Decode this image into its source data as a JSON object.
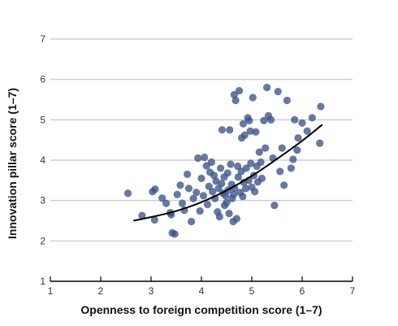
{
  "chart_data": {
    "type": "scatter",
    "title": "",
    "xlabel": "Openness to foreign competition score (1–7)",
    "ylabel": "Innovation pillar score (1–7)",
    "xlim": [
      1,
      7
    ],
    "ylim": [
      1,
      7
    ],
    "x_ticks": [
      1,
      2,
      3,
      4,
      5,
      6,
      7
    ],
    "y_ticks": [
      1,
      2,
      3,
      4,
      5,
      6,
      7
    ],
    "x_tick_labels": [
      "1",
      "2",
      "3",
      "4",
      "5",
      "6",
      "7"
    ],
    "y_tick_labels": [
      "1",
      "2",
      "3",
      "4",
      "5",
      "6",
      "7"
    ],
    "grid": "horizontal",
    "legend": "none",
    "colors": {
      "points": "#3c5287",
      "trend": "#000000",
      "grid": "#d0d0d0",
      "axis": "#000000"
    },
    "series": [
      {
        "points": [
          [
            2.54,
            3.18
          ],
          [
            2.82,
            2.63
          ],
          [
            3.03,
            3.22
          ],
          [
            3.08,
            3.28
          ],
          [
            3.07,
            2.52
          ],
          [
            3.22,
            3.06
          ],
          [
            3.3,
            2.93
          ],
          [
            3.38,
            2.7
          ],
          [
            3.4,
            2.65
          ],
          [
            3.42,
            2.2
          ],
          [
            3.47,
            2.17
          ],
          [
            3.52,
            3.15
          ],
          [
            3.58,
            3.38
          ],
          [
            3.62,
            2.93
          ],
          [
            3.66,
            2.76
          ],
          [
            3.72,
            3.65
          ],
          [
            3.75,
            3.3
          ],
          [
            3.8,
            2.48
          ],
          [
            3.84,
            3.05
          ],
          [
            3.9,
            3.2
          ],
          [
            3.93,
            4.05
          ],
          [
            3.97,
            2.74
          ],
          [
            4.0,
            3.55
          ],
          [
            4.04,
            3.12
          ],
          [
            4.06,
            4.07
          ],
          [
            4.1,
            3.86
          ],
          [
            4.12,
            2.9
          ],
          [
            4.15,
            3.35
          ],
          [
            4.17,
            3.7
          ],
          [
            4.2,
            3.95
          ],
          [
            4.22,
            3.22
          ],
          [
            4.25,
            3.62
          ],
          [
            4.27,
            3.05
          ],
          [
            4.29,
            3.48
          ],
          [
            4.32,
            2.72
          ],
          [
            4.34,
            3.3
          ],
          [
            4.36,
            2.6
          ],
          [
            4.38,
            3.8
          ],
          [
            4.4,
            3.42
          ],
          [
            4.41,
            4.75
          ],
          [
            4.43,
            3.18
          ],
          [
            4.45,
            3.58
          ],
          [
            4.46,
            2.88
          ],
          [
            4.48,
            3.12
          ],
          [
            4.5,
            2.95
          ],
          [
            4.52,
            3.68
          ],
          [
            4.53,
            3.26
          ],
          [
            4.55,
            2.68
          ],
          [
            4.56,
            4.75
          ],
          [
            4.58,
            3.9
          ],
          [
            4.6,
            3.4
          ],
          [
            4.61,
            3.05
          ],
          [
            4.63,
            2.48
          ],
          [
            4.64,
            3.15
          ],
          [
            4.65,
            5.62
          ],
          [
            4.66,
            3.3
          ],
          [
            4.68,
            5.48
          ],
          [
            4.7,
            2.55
          ],
          [
            4.72,
            3.85
          ],
          [
            4.73,
            3.58
          ],
          [
            4.75,
            5.72
          ],
          [
            4.77,
            3.2
          ],
          [
            4.79,
            3.72
          ],
          [
            4.8,
            4.55
          ],
          [
            4.82,
            3.1
          ],
          [
            4.83,
            4.9
          ],
          [
            4.84,
            3.45
          ],
          [
            4.86,
            4.62
          ],
          [
            4.88,
            3.3
          ],
          [
            4.89,
            3.8
          ],
          [
            4.92,
            5.05
          ],
          [
            4.94,
            3.5
          ],
          [
            4.95,
            4.98
          ],
          [
            4.97,
            4.72
          ],
          [
            4.98,
            3.92
          ],
          [
            5.0,
            3.33
          ],
          [
            5.02,
            5.55
          ],
          [
            5.04,
            3.62
          ],
          [
            5.06,
            3.22
          ],
          [
            5.08,
            4.7
          ],
          [
            5.1,
            3.85
          ],
          [
            5.12,
            3.46
          ],
          [
            5.15,
            4.2
          ],
          [
            5.18,
            3.95
          ],
          [
            5.2,
            3.55
          ],
          [
            5.24,
            4.98
          ],
          [
            5.27,
            4.3
          ],
          [
            5.3,
            5.8
          ],
          [
            5.33,
            5.1
          ],
          [
            5.38,
            5.0
          ],
          [
            5.42,
            4.05
          ],
          [
            5.45,
            2.88
          ],
          [
            5.52,
            5.7
          ],
          [
            5.56,
            3.72
          ],
          [
            5.6,
            4.3
          ],
          [
            5.64,
            3.38
          ],
          [
            5.7,
            5.48
          ],
          [
            5.78,
            3.8
          ],
          [
            5.82,
            4.02
          ],
          [
            5.85,
            5.0
          ],
          [
            5.9,
            4.25
          ],
          [
            5.92,
            4.55
          ],
          [
            6.0,
            4.92
          ],
          [
            6.1,
            4.72
          ],
          [
            6.2,
            5.05
          ],
          [
            6.35,
            4.42
          ],
          [
            6.37,
            5.33
          ]
        ]
      }
    ],
    "trend_line": {
      "type": "quadratic",
      "x_range": [
        2.65,
        6.4
      ],
      "points": [
        [
          2.65,
          2.5
        ],
        [
          3.0,
          2.59
        ],
        [
          3.5,
          2.74
        ],
        [
          4.0,
          2.96
        ],
        [
          4.5,
          3.25
        ],
        [
          5.0,
          3.61
        ],
        [
          5.5,
          4.03
        ],
        [
          6.0,
          4.48
        ],
        [
          6.4,
          4.88
        ]
      ]
    }
  }
}
